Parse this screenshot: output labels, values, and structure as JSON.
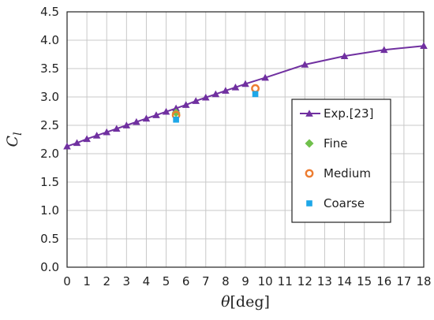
{
  "chart_data": {
    "type": "scatter",
    "xlabel": {
      "symbol": "θ",
      "unit": "[deg]"
    },
    "ylabel": {
      "symbol": "C",
      "subscript": "l"
    },
    "xlim": [
      0,
      18
    ],
    "ylim": [
      0,
      4.5
    ],
    "xticks": [
      "0",
      "1",
      "2",
      "3",
      "4",
      "5",
      "6",
      "7",
      "8",
      "9",
      "10",
      "11",
      "12",
      "13",
      "14",
      "15",
      "16",
      "17",
      "18"
    ],
    "yticks": [
      "0.0",
      "0.5",
      "1.0",
      "1.5",
      "2.0",
      "2.5",
      "3.0",
      "3.5",
      "4.0",
      "4.5"
    ],
    "grid": true,
    "legend_position": "right",
    "series": [
      {
        "name": "Exp.[23]",
        "style": "line-triangle",
        "color": "#7030a0",
        "x": [
          0,
          0.5,
          1,
          1.5,
          2,
          2.5,
          3,
          3.5,
          4,
          4.5,
          5,
          5.5,
          6,
          6.5,
          7,
          7.5,
          8,
          8.5,
          9,
          10,
          12,
          14,
          16,
          18
        ],
        "y": [
          2.13,
          2.19,
          2.26,
          2.32,
          2.38,
          2.44,
          2.5,
          2.56,
          2.62,
          2.68,
          2.74,
          2.8,
          2.86,
          2.93,
          2.99,
          3.05,
          3.11,
          3.17,
          3.23,
          3.34,
          3.57,
          3.72,
          3.83,
          3.9
        ]
      },
      {
        "name": "Fine",
        "style": "diamond",
        "color": "#70c04c",
        "x": [
          5.5
        ],
        "y": [
          2.72
        ]
      },
      {
        "name": "Medium",
        "style": "circle-open",
        "color": "#ed7d31",
        "x": [
          5.5,
          9.5
        ],
        "y": [
          2.68,
          3.15
        ]
      },
      {
        "name": "Coarse",
        "style": "square",
        "color": "#1ea7e8",
        "x": [
          5.5,
          9.5
        ],
        "y": [
          2.6,
          3.05
        ]
      }
    ]
  }
}
